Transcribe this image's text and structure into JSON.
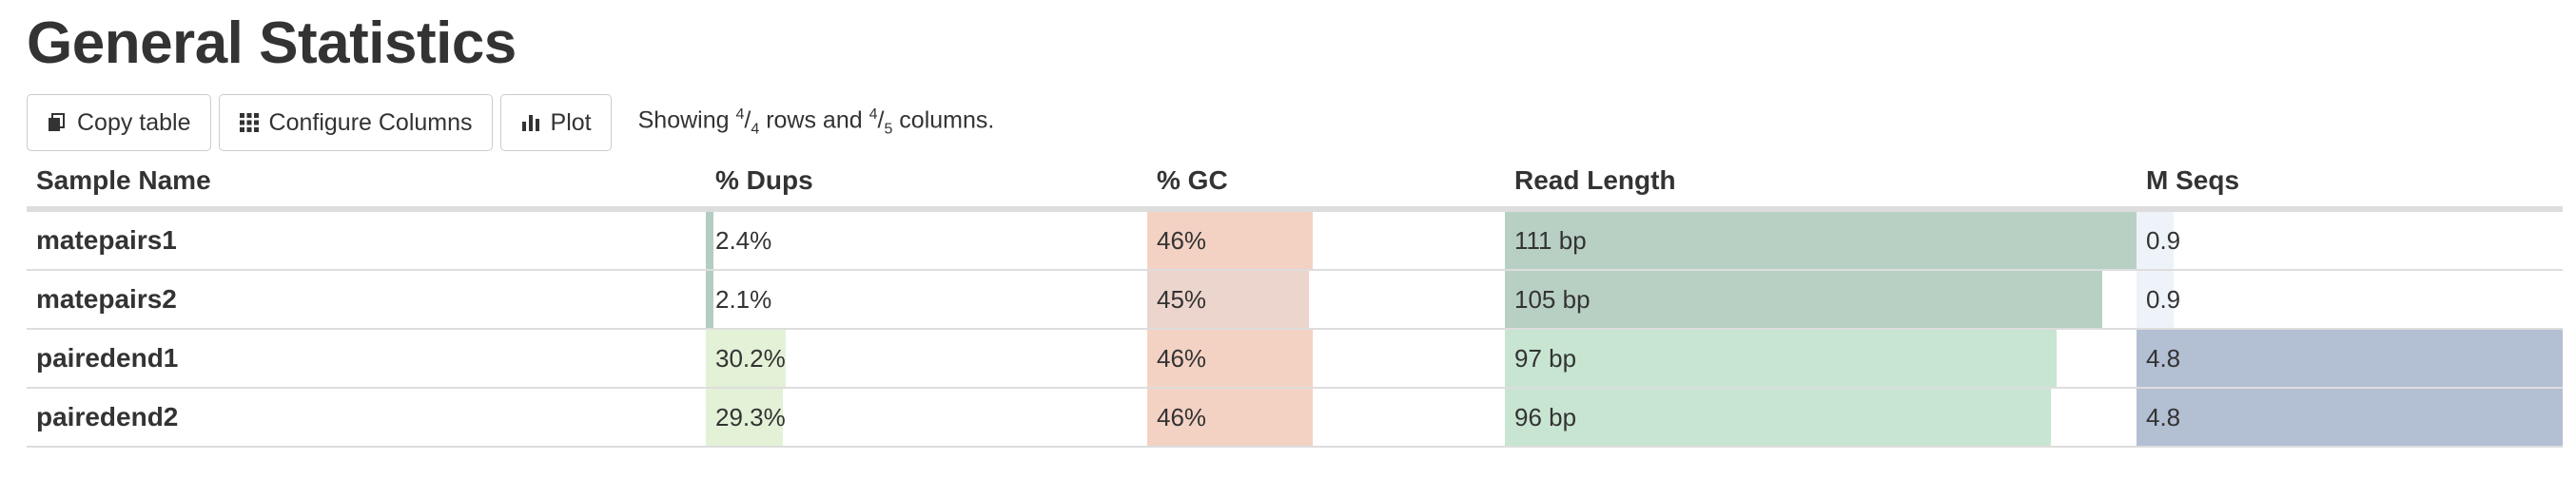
{
  "page": {
    "title": "General Statistics"
  },
  "toolbar": {
    "copy_label": "Copy table",
    "configure_label": "Configure Columns",
    "plot_label": "Plot",
    "showing": {
      "prefix": "Showing ",
      "rows_shown": "4",
      "rows_total": "4",
      "middle": " rows and ",
      "cols_shown": "4",
      "cols_total": "5",
      "suffix": " columns."
    }
  },
  "table": {
    "headers": {
      "sample": "Sample Name",
      "dups": "% Dups",
      "gc": "% GC",
      "read_length": "Read Length",
      "mseqs": "M Seqs"
    },
    "colors": {
      "dups_low": "#b4cdc1",
      "dups_high": "#e3f2d7",
      "gc": "#f3d2c4",
      "gc_alt": "#ecd5cd",
      "read_length_high": "#b8d0c4",
      "read_length_low": "#c8e5d2",
      "mseqs_low": "#eef3fa",
      "mseqs_high": "#b3bfd3"
    },
    "rows": [
      {
        "sample": "matepairs1",
        "dups": "2.4%",
        "dups_frac": 0.024,
        "gc": "46%",
        "gc_frac": 0.46,
        "read_length": "111 bp",
        "rl_frac": 1.0,
        "mseqs": "0.9",
        "mseqs_frac": 0.176
      },
      {
        "sample": "matepairs2",
        "dups": "2.1%",
        "dups_frac": 0.021,
        "gc": "45%",
        "gc_frac": 0.45,
        "read_length": "105 bp",
        "rl_frac": 0.946,
        "mseqs": "0.9",
        "mseqs_frac": 0.176
      },
      {
        "sample": "pairedend1",
        "dups": "30.2%",
        "dups_frac": 0.302,
        "gc": "46%",
        "gc_frac": 0.46,
        "read_length": "97 bp",
        "rl_frac": 0.874,
        "mseqs": "4.8",
        "mseqs_frac": 1.0
      },
      {
        "sample": "pairedend2",
        "dups": "29.3%",
        "dups_frac": 0.293,
        "gc": "46%",
        "gc_frac": 0.46,
        "read_length": "96 bp",
        "rl_frac": 0.865,
        "mseqs": "4.8",
        "mseqs_frac": 1.0
      }
    ]
  }
}
